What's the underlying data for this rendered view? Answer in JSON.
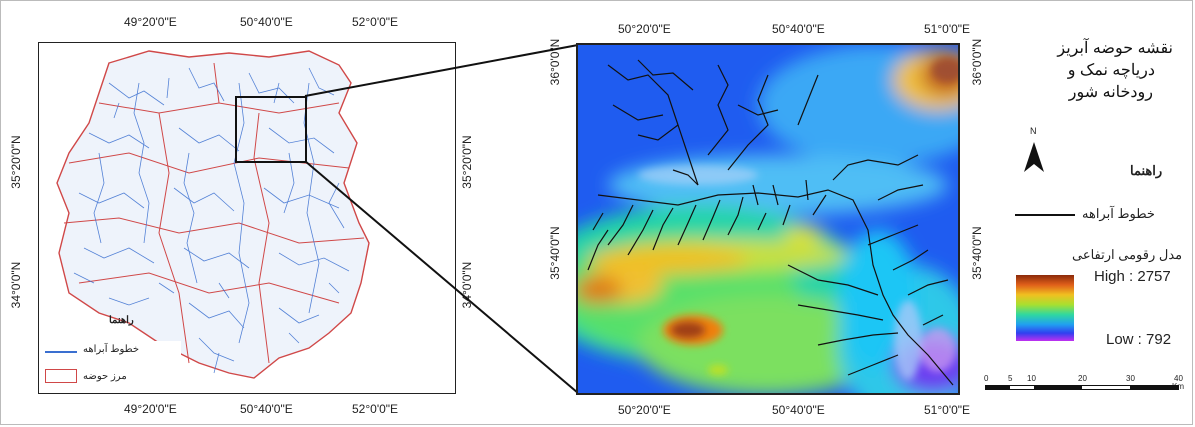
{
  "left_map": {
    "top_ticks": [
      "49°20'0\"E",
      "50°40'0\"E",
      "52°0'0\"E"
    ],
    "bottom_ticks": [
      "49°20'0\"E",
      "50°40'0\"E",
      "52°0'0\"E"
    ],
    "left_ticks": [
      "35°20'0\"N",
      "34°0'0\"N"
    ],
    "right_ticks": [
      "35°20'0\"N",
      "34°0'0\"N"
    ],
    "legend_title": "راهنما",
    "legend_items": [
      "خطوط آبراهه",
      "مرز حوضه"
    ],
    "colors": {
      "stream": "#3a6fd0",
      "boundary": "#d04848"
    }
  },
  "right_map": {
    "top_ticks": [
      "50°20'0\"E",
      "50°40'0\"E",
      "51°0'0\"E"
    ],
    "bottom_ticks": [
      "50°20'0\"E",
      "50°40'0\"E",
      "51°0'0\"E"
    ],
    "left_ticks": [
      "36°0'0\"N",
      "35°40'0\"N"
    ],
    "right_ticks": [
      "36°0'0\"N",
      "35°40'0\"N"
    ]
  },
  "legend": {
    "title_line1": "نقشه حوضه آبریز",
    "title_line2": "دریاچه نمک و",
    "title_line3": "رودخانه شور",
    "north_label": "N",
    "legend_heading": "راهنما",
    "stream_label": "خطوط آبراهه",
    "dem_label": "مدل رقومی ارتفاعی",
    "high_label": "High : 2757",
    "low_label": "Low : 792",
    "scale_ticks": [
      "0",
      "5",
      "10",
      "20",
      "30",
      "40"
    ],
    "scale_unit": "Km"
  }
}
